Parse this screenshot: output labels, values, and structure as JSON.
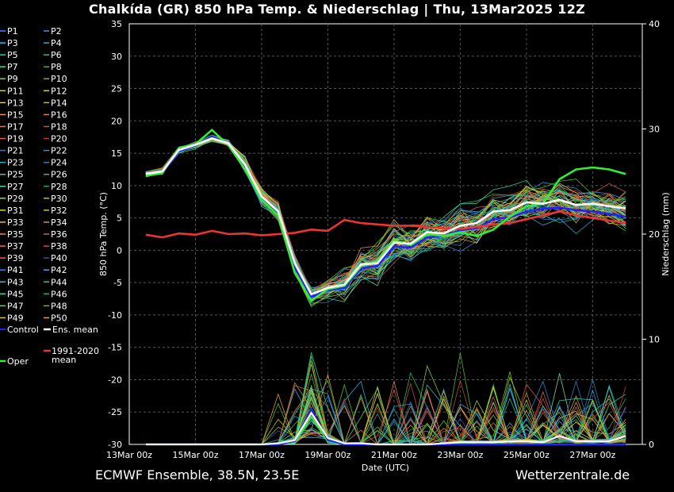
{
  "header": {
    "title": "Chalkída  (GR)  850 hPa Temp. & Niederschlag | Thu, 13Mar2025 12Z"
  },
  "footer": {
    "left": "ECMWF Ensemble, 38.5N, 23.5E",
    "right": "Wetterzentrale.de"
  },
  "chart_data": {
    "type": "line",
    "xlabel": "Date (UTC)",
    "ylabel_left": "850 hPa Temp. (°C)",
    "ylabel_right": "Niederschlag (mm)",
    "x_tick_labels": [
      "13Mar 00z",
      "15Mar 00z",
      "17Mar 00z",
      "19Mar 00z",
      "21Mar 00z",
      "23Mar 00z",
      "25Mar 00z",
      "27Mar 00z"
    ],
    "y_left_ticks": [
      35,
      30,
      25,
      20,
      15,
      10,
      5,
      0,
      -5,
      -10,
      -15,
      -20,
      -25,
      -30
    ],
    "y_right_ticks": [
      40,
      30,
      20,
      10,
      0
    ],
    "ylim_left": [
      -30,
      35
    ],
    "ylim_right": [
      0,
      40
    ],
    "x_hours": [
      12,
      24,
      36,
      48,
      60,
      72,
      84,
      96,
      108,
      120,
      132,
      144,
      156,
      168,
      180,
      192,
      204,
      216,
      228,
      240,
      252,
      264,
      276,
      288,
      300,
      312,
      324,
      336,
      348,
      360
    ],
    "series": [
      {
        "name": "Ens. mean",
        "color": "#ffffff",
        "axis": "left",
        "values": [
          11.8,
          12.2,
          15.5,
          16.3,
          17.3,
          16.5,
          13.2,
          8.3,
          6.0,
          -2.0,
          -6.8,
          -5.8,
          -5.3,
          -2.2,
          -2.0,
          1.2,
          1.0,
          2.8,
          2.6,
          3.8,
          4.2,
          6.0,
          6.2,
          7.4,
          7.2,
          7.8,
          7.0,
          7.2,
          6.8,
          6.5
        ]
      },
      {
        "name": "Oper",
        "color": "#33ee33",
        "axis": "left",
        "values": [
          11.5,
          12.0,
          15.8,
          16.4,
          18.6,
          16.2,
          12.5,
          7.8,
          5.4,
          -3.5,
          -7.8,
          -6.0,
          -5.5,
          -2.5,
          -1.6,
          1.6,
          0.8,
          2.5,
          2.2,
          2.8,
          2.2,
          3.2,
          5.2,
          6.8,
          7.2,
          11.0,
          12.5,
          12.8,
          12.5,
          11.8
        ]
      },
      {
        "name": "1991-2020 mean",
        "color": "#ee3333",
        "axis": "left",
        "values": [
          2.4,
          2.0,
          2.6,
          2.4,
          3.0,
          2.5,
          2.6,
          2.3,
          2.5,
          2.7,
          3.2,
          3.0,
          4.7,
          4.2,
          4.0,
          3.8,
          3.8,
          3.6,
          3.4,
          3.3,
          3.6,
          4.0,
          4.2,
          4.8,
          5.4,
          6.0,
          5.4,
          5.0,
          4.6,
          4.2
        ]
      },
      {
        "name": "Control",
        "color": "#2222ff",
        "axis": "left",
        "values": [
          11.6,
          12.0,
          15.3,
          16.2,
          17.6,
          16.4,
          12.8,
          7.9,
          5.6,
          -2.6,
          -7.2,
          -6.2,
          -5.8,
          -2.8,
          -2.4,
          0.6,
          0.4,
          2.0,
          2.2,
          3.1,
          3.4,
          4.8,
          5.1,
          6.0,
          6.4,
          6.6,
          6.2,
          6.0,
          5.6,
          5.2
        ]
      }
    ],
    "precip_series": [
      {
        "name": "Ens. mean",
        "color": "#ffffff",
        "axis": "right",
        "values": [
          0,
          0,
          0,
          0,
          0,
          0,
          0,
          0,
          0.1,
          0.4,
          3.0,
          0.6,
          0.1,
          0.1,
          0,
          0,
          0,
          0,
          0.1,
          0.2,
          0.2,
          0.2,
          0.3,
          0.3,
          0.2,
          0.8,
          0.3,
          0.3,
          0.3,
          0.8
        ]
      },
      {
        "name": "Control",
        "color": "#2222ff",
        "axis": "right",
        "values": [
          0,
          0,
          0,
          0,
          0,
          0,
          0,
          0,
          0,
          0.3,
          3.4,
          0.4,
          0,
          0,
          0,
          0,
          0,
          0,
          0,
          0,
          0,
          0,
          0,
          0,
          0,
          0,
          0,
          0,
          0,
          0
        ]
      },
      {
        "name": "Oper",
        "color": "#33ee33",
        "axis": "right",
        "values": [
          0,
          0,
          0,
          0,
          0,
          0,
          0,
          0,
          0,
          0.2,
          2.6,
          0.3,
          0,
          0,
          0,
          0,
          0,
          0,
          0,
          0,
          0,
          0,
          0,
          0,
          0,
          0,
          0,
          0,
          0,
          0
        ]
      }
    ],
    "legend": {
      "perturbed_members": [
        "P1",
        "P2",
        "P3",
        "P4",
        "P5",
        "P6",
        "P7",
        "P8",
        "P9",
        "P10",
        "P11",
        "P12",
        "P13",
        "P14",
        "P15",
        "P16",
        "P17",
        "P18",
        "P19",
        "P20",
        "P21",
        "P22",
        "P23",
        "P24",
        "P25",
        "P26",
        "P27",
        "P28",
        "P29",
        "P30",
        "P31",
        "P32",
        "P33",
        "P34",
        "P35",
        "P36",
        "P37",
        "P38",
        "P39",
        "P40",
        "P41",
        "P42",
        "P43",
        "P44",
        "P45",
        "P46",
        "P47",
        "P48",
        "P49",
        "P50"
      ],
      "member_colors": [
        "#4488ff",
        "#3399ff",
        "#22bbee",
        "#22aadd",
        "#33ccaa",
        "#22cc66",
        "#44dd88",
        "#33bb44",
        "#66dd33",
        "#55cc22",
        "#bbdd33",
        "#ddcc22",
        "#eecc33",
        "#eeaa22",
        "#ee9944",
        "#dd8833",
        "#ee7744",
        "#cc5533",
        "#ee5544",
        "#cc3333",
        "#3377dd",
        "#2299ee",
        "#33aacc",
        "#2288bb",
        "#33ccbb",
        "#22bb99",
        "#44ddaa",
        "#22aa66",
        "#88dd44",
        "#aacc22",
        "#ccdd44",
        "#ddbb33",
        "#eebb44",
        "#dd9922",
        "#ee8855",
        "#cc6644",
        "#ee6655",
        "#dd4444",
        "#ff5555",
        "#2255cc",
        "#3388dd",
        "#44aaee",
        "#33bbdd",
        "#22ccaa",
        "#33dd99",
        "#22bb55",
        "#55dd66",
        "#44cc33",
        "#cccc33",
        "#eeaa33"
      ],
      "special": [
        {
          "label": "Control",
          "color": "#2222ff"
        },
        {
          "label": "Ens. mean",
          "color": "#ffffff"
        },
        {
          "label": "1991-2020",
          "label2": "mean",
          "color": "#ee3333"
        },
        {
          "label": "Oper",
          "color": "#33ee33"
        }
      ]
    }
  }
}
